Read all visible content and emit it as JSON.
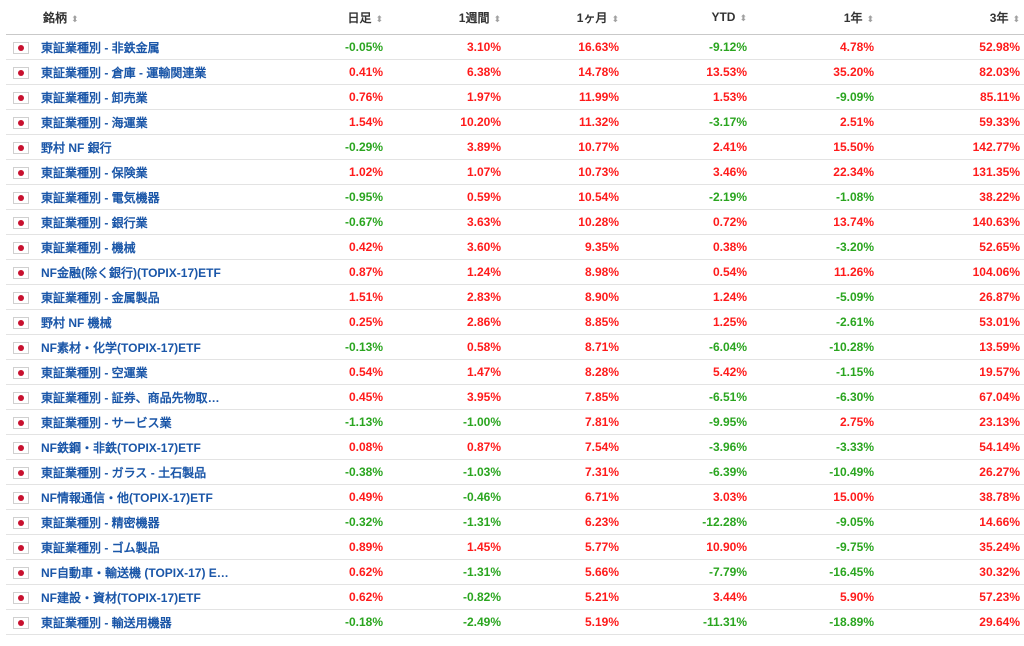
{
  "header": {
    "name": "銘柄",
    "day": "日足",
    "week": "1週間",
    "month": "1ヶ月",
    "ytd": "YTD",
    "year1": "1年",
    "year3": "3年",
    "sort_icon": "sort-icon"
  },
  "colors": {
    "positive": "#ff1a1a",
    "negative": "#2aa51f",
    "link": "#1a56a8"
  },
  "rows": [
    {
      "name": "東証業種別 - 非鉄金属",
      "day": "-0.05%",
      "week": "3.10%",
      "month": "16.63%",
      "ytd": "-9.12%",
      "y1": "4.78%",
      "y3": "52.98%"
    },
    {
      "name": "東証業種別 - 倉庫 - 運輸関連業",
      "day": "0.41%",
      "week": "6.38%",
      "month": "14.78%",
      "ytd": "13.53%",
      "y1": "35.20%",
      "y3": "82.03%"
    },
    {
      "name": "東証業種別 - 卸売業",
      "day": "0.76%",
      "week": "1.97%",
      "month": "11.99%",
      "ytd": "1.53%",
      "y1": "-9.09%",
      "y3": "85.11%"
    },
    {
      "name": "東証業種別 - 海運業",
      "day": "1.54%",
      "week": "10.20%",
      "month": "11.32%",
      "ytd": "-3.17%",
      "y1": "2.51%",
      "y3": "59.33%"
    },
    {
      "name": "野村 NF 銀行",
      "day": "-0.29%",
      "week": "3.89%",
      "month": "10.77%",
      "ytd": "2.41%",
      "y1": "15.50%",
      "y3": "142.77%"
    },
    {
      "name": "東証業種別 - 保険業",
      "day": "1.02%",
      "week": "1.07%",
      "month": "10.73%",
      "ytd": "3.46%",
      "y1": "22.34%",
      "y3": "131.35%"
    },
    {
      "name": "東証業種別 - 電気機器",
      "day": "-0.95%",
      "week": "0.59%",
      "month": "10.54%",
      "ytd": "-2.19%",
      "y1": "-1.08%",
      "y3": "38.22%"
    },
    {
      "name": "東証業種別 - 銀行業",
      "day": "-0.67%",
      "week": "3.63%",
      "month": "10.28%",
      "ytd": "0.72%",
      "y1": "13.74%",
      "y3": "140.63%"
    },
    {
      "name": "東証業種別 - 機械",
      "day": "0.42%",
      "week": "3.60%",
      "month": "9.35%",
      "ytd": "0.38%",
      "y1": "-3.20%",
      "y3": "52.65%"
    },
    {
      "name": "NF金融(除く銀行)(TOPIX-17)ETF",
      "day": "0.87%",
      "week": "1.24%",
      "month": "8.98%",
      "ytd": "0.54%",
      "y1": "11.26%",
      "y3": "104.06%"
    },
    {
      "name": "東証業種別 - 金属製品",
      "day": "1.51%",
      "week": "2.83%",
      "month": "8.90%",
      "ytd": "1.24%",
      "y1": "-5.09%",
      "y3": "26.87%"
    },
    {
      "name": "野村 NF 機械",
      "day": "0.25%",
      "week": "2.86%",
      "month": "8.85%",
      "ytd": "1.25%",
      "y1": "-2.61%",
      "y3": "53.01%"
    },
    {
      "name": "NF素材・化学(TOPIX-17)ETF",
      "day": "-0.13%",
      "week": "0.58%",
      "month": "8.71%",
      "ytd": "-6.04%",
      "y1": "-10.28%",
      "y3": "13.59%"
    },
    {
      "name": "東証業種別 - 空運業",
      "day": "0.54%",
      "week": "1.47%",
      "month": "8.28%",
      "ytd": "5.42%",
      "y1": "-1.15%",
      "y3": "19.57%"
    },
    {
      "name": "東証業種別 - 証券、商品先物取…",
      "day": "0.45%",
      "week": "3.95%",
      "month": "7.85%",
      "ytd": "-6.51%",
      "y1": "-6.30%",
      "y3": "67.04%"
    },
    {
      "name": "東証業種別 - サービス業",
      "day": "-1.13%",
      "week": "-1.00%",
      "month": "7.81%",
      "ytd": "-9.95%",
      "y1": "2.75%",
      "y3": "23.13%"
    },
    {
      "name": "NF鉄鋼・非鉄(TOPIX-17)ETF",
      "day": "0.08%",
      "week": "0.87%",
      "month": "7.54%",
      "ytd": "-3.96%",
      "y1": "-3.33%",
      "y3": "54.14%"
    },
    {
      "name": "東証業種別 - ガラス - 土石製品",
      "day": "-0.38%",
      "week": "-1.03%",
      "month": "7.31%",
      "ytd": "-6.39%",
      "y1": "-10.49%",
      "y3": "26.27%"
    },
    {
      "name": "NF情報通信・他(TOPIX-17)ETF",
      "day": "0.49%",
      "week": "-0.46%",
      "month": "6.71%",
      "ytd": "3.03%",
      "y1": "15.00%",
      "y3": "38.78%"
    },
    {
      "name": "東証業種別 - 精密機器",
      "day": "-0.32%",
      "week": "-1.31%",
      "month": "6.23%",
      "ytd": "-12.28%",
      "y1": "-9.05%",
      "y3": "14.66%"
    },
    {
      "name": "東証業種別 - ゴム製品",
      "day": "0.89%",
      "week": "1.45%",
      "month": "5.77%",
      "ytd": "10.90%",
      "y1": "-9.75%",
      "y3": "35.24%"
    },
    {
      "name": "NF自動車・輸送機 (TOPIX-17) E…",
      "day": "0.62%",
      "week": "-1.31%",
      "month": "5.66%",
      "ytd": "-7.79%",
      "y1": "-16.45%",
      "y3": "30.32%"
    },
    {
      "name": "NF建設・資材(TOPIX-17)ETF",
      "day": "0.62%",
      "week": "-0.82%",
      "month": "5.21%",
      "ytd": "3.44%",
      "y1": "5.90%",
      "y3": "57.23%"
    },
    {
      "name": "東証業種別 - 輸送用機器",
      "day": "-0.18%",
      "week": "-2.49%",
      "month": "5.19%",
      "ytd": "-11.31%",
      "y1": "-18.89%",
      "y3": "29.64%"
    }
  ]
}
